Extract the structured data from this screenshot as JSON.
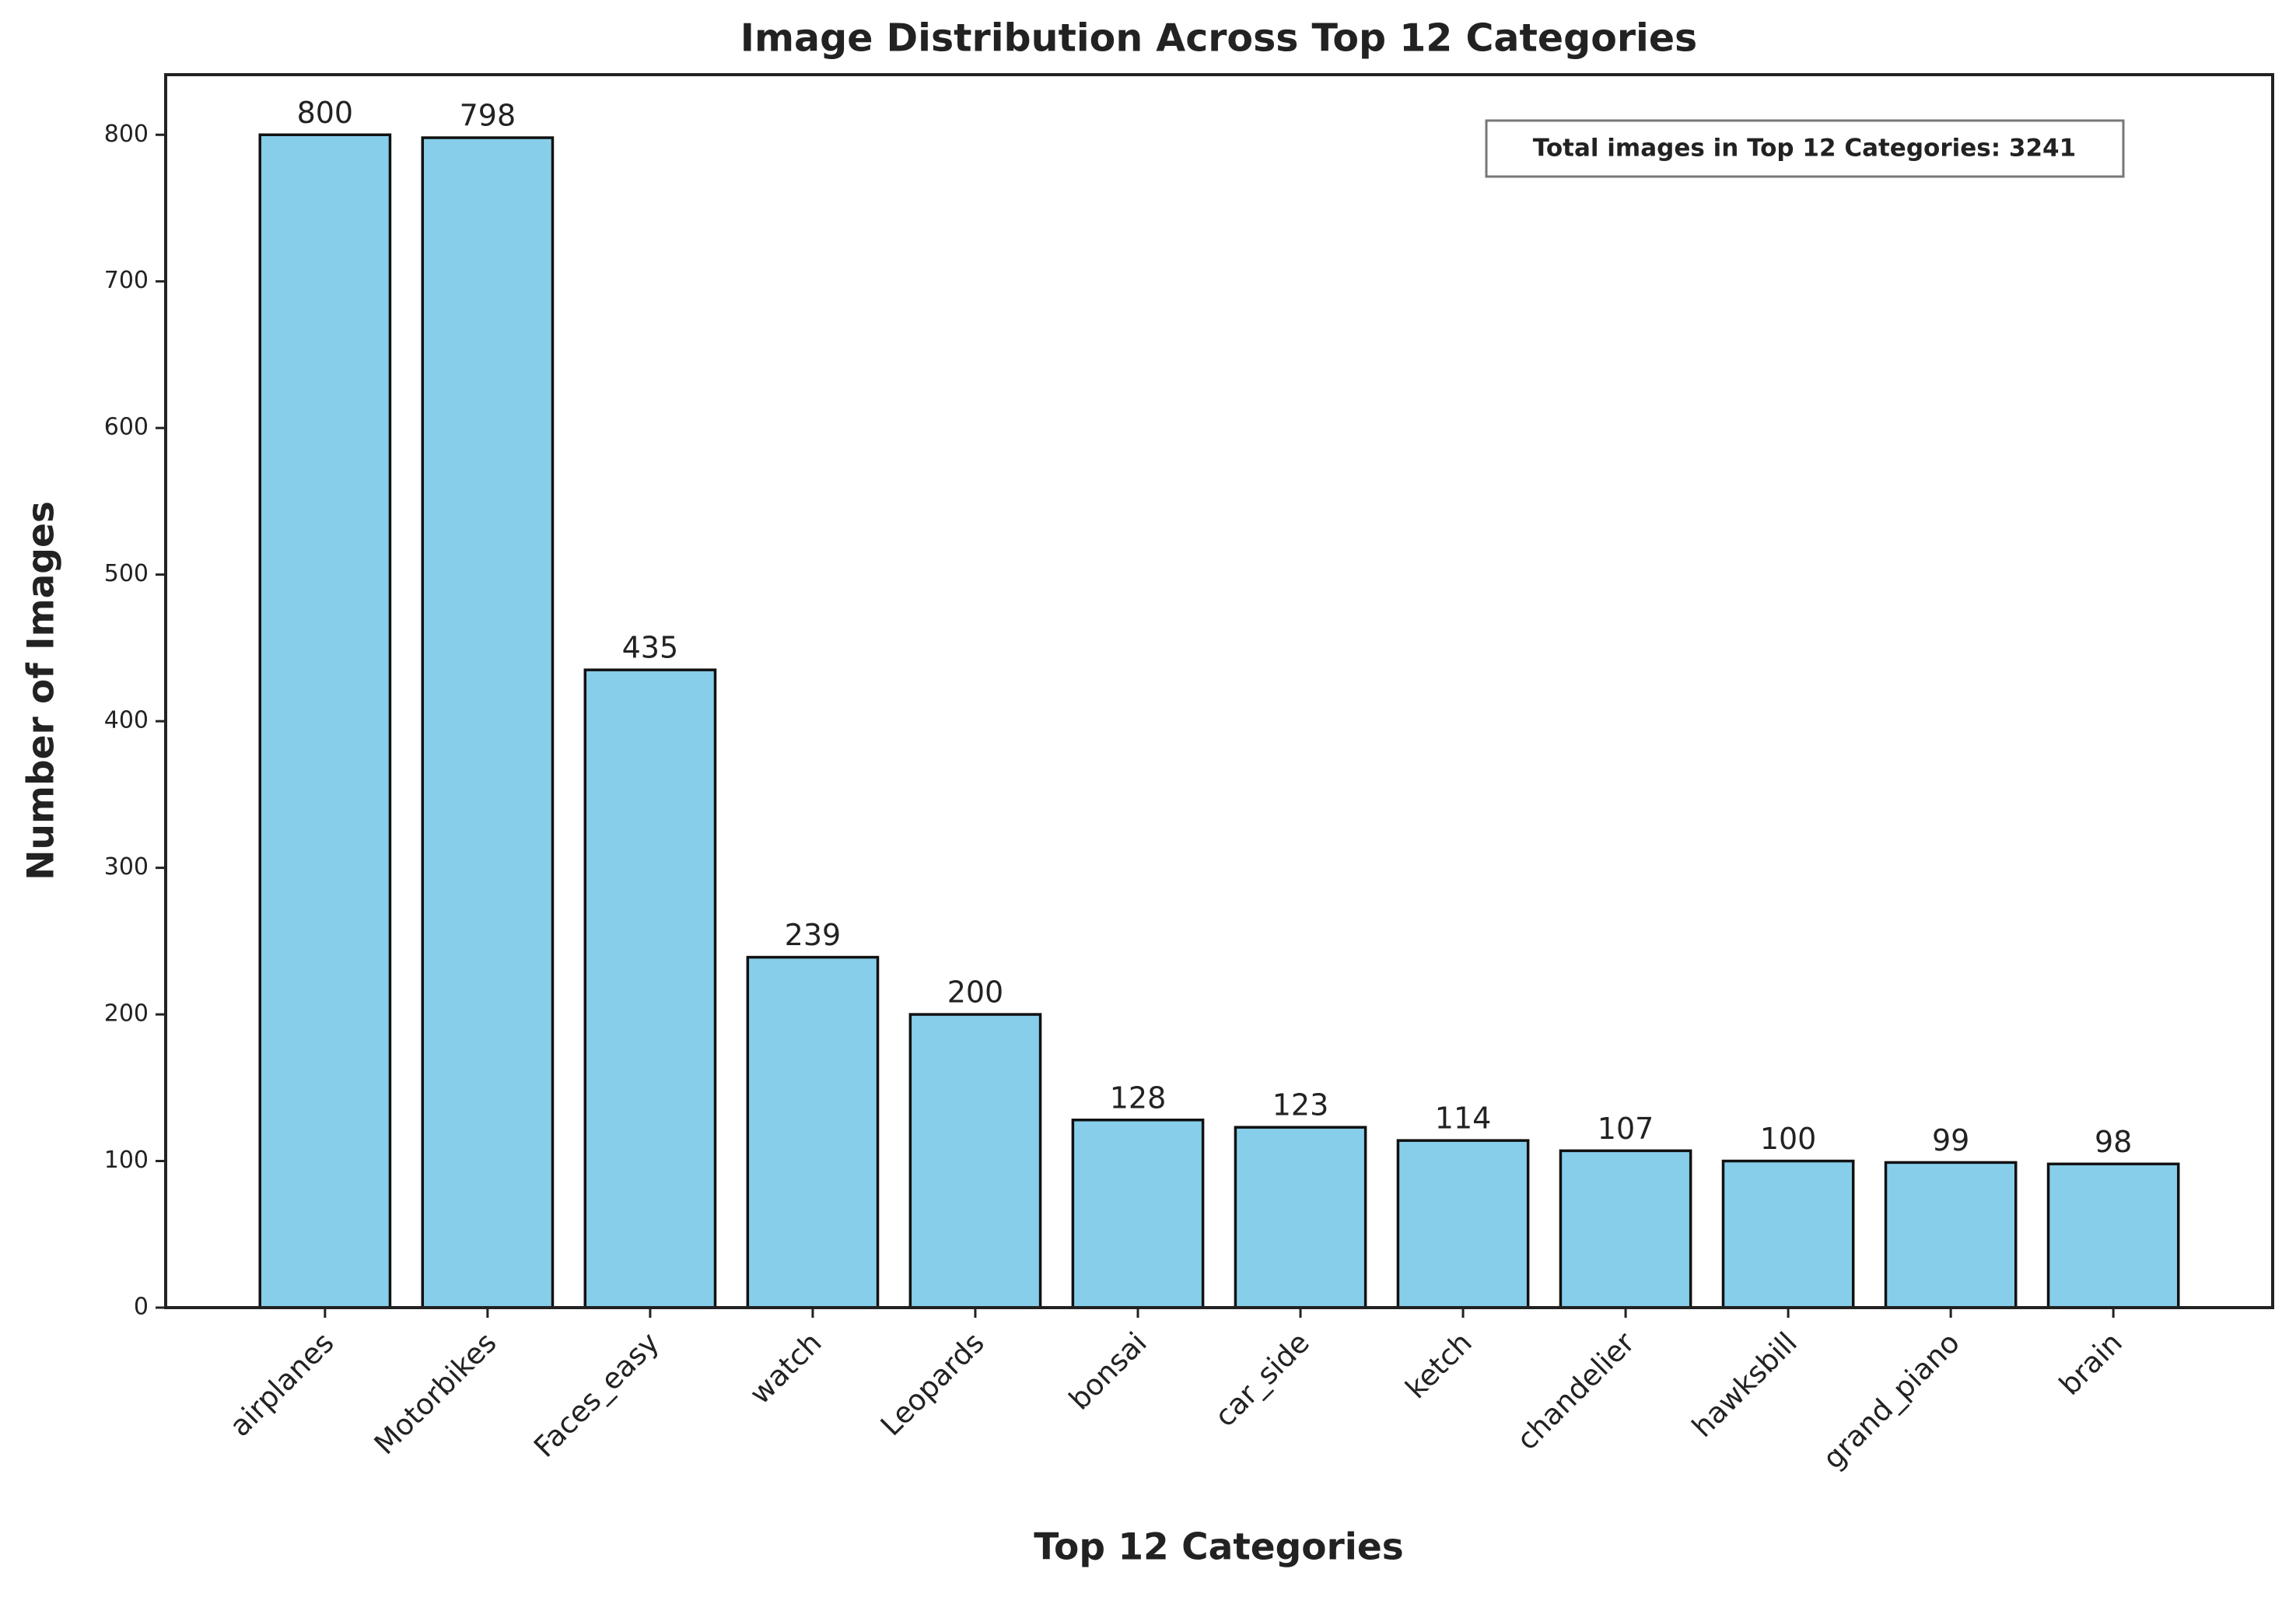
{
  "chart_data": {
    "type": "bar",
    "title": "Image Distribution Across Top 12 Categories",
    "x_label": "Top 12 Categories",
    "y_label": "Number of Images",
    "annotation": "Total images in Top 12 Categories: 3241",
    "categories": [
      "airplanes",
      "Motorbikes",
      "Faces_easy",
      "watch",
      "Leopards",
      "bonsai",
      "car_side",
      "ketch",
      "chandelier",
      "hawksbill",
      "grand_piano",
      "brain"
    ],
    "values": [
      800,
      798,
      435,
      239,
      200,
      128,
      123,
      114,
      107,
      100,
      99,
      98
    ],
    "color": "#87ceeb",
    "ylim": [
      0,
      841
    ],
    "yticks": [
      0,
      100,
      200,
      300,
      400,
      500,
      600,
      700,
      800
    ],
    "grid": false
  }
}
